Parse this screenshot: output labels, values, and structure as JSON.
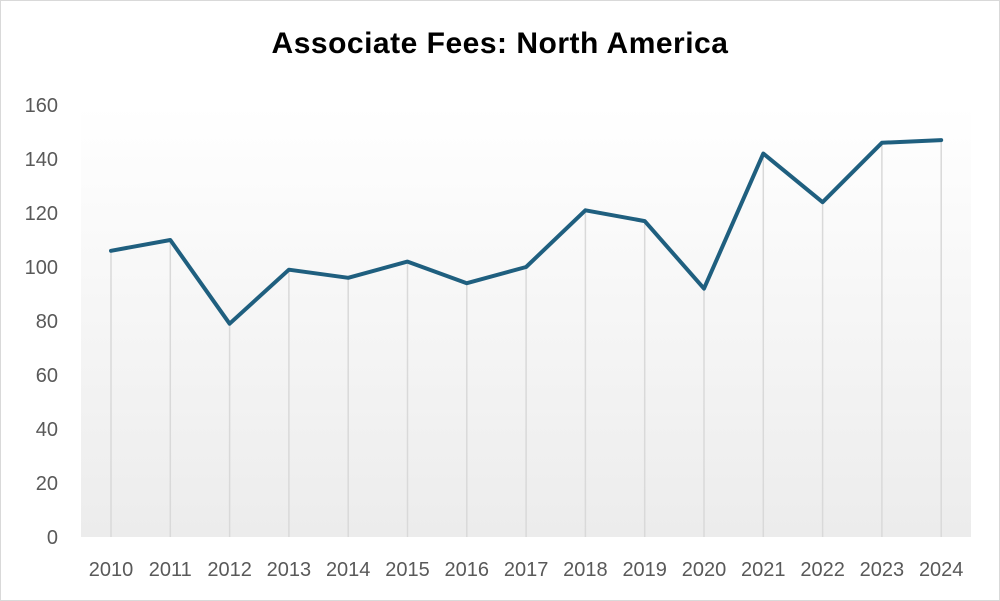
{
  "chart_data": {
    "type": "line",
    "title": "Associate Fees:  North America",
    "xlabel": "",
    "ylabel": "",
    "categories": [
      "2010",
      "2011",
      "2012",
      "2013",
      "2014",
      "2015",
      "2016",
      "2017",
      "2018",
      "2019",
      "2020",
      "2021",
      "2022",
      "2023",
      "2024"
    ],
    "series": [
      {
        "values": [
          106,
          110,
          79,
          99,
          96,
          102,
          94,
          100,
          121,
          117,
          92,
          142,
          124,
          146,
          147
        ]
      }
    ],
    "ylim": [
      0,
      160
    ],
    "yticks": [
      "0",
      "20",
      "40",
      "60",
      "80",
      "100",
      "120",
      "140",
      "160"
    ],
    "grid": "vertical drop lines",
    "legend": "none",
    "colors": {
      "line": "#1f5f7f",
      "drop_line": "#d9d9d9",
      "plot_gradient_top": "#ffffff",
      "plot_gradient_bottom": "#ececec"
    }
  }
}
